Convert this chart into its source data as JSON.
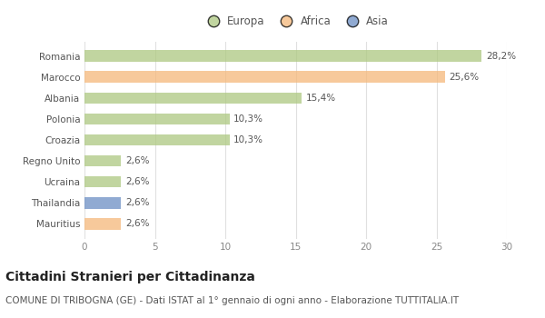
{
  "categories": [
    "Romania",
    "Marocco",
    "Albania",
    "Polonia",
    "Croazia",
    "Regno Unito",
    "Ucraina",
    "Thailandia",
    "Mauritius"
  ],
  "values": [
    28.2,
    25.6,
    15.4,
    10.3,
    10.3,
    2.6,
    2.6,
    2.6,
    2.6
  ],
  "labels": [
    "28,2%",
    "25,6%",
    "15,4%",
    "10,3%",
    "10,3%",
    "2,6%",
    "2,6%",
    "2,6%",
    "2,6%"
  ],
  "colors": [
    "#adc880",
    "#f5b87a",
    "#adc880",
    "#adc880",
    "#adc880",
    "#adc880",
    "#adc880",
    "#6b8ec4",
    "#f5b87a"
  ],
  "legend_labels": [
    "Europa",
    "Africa",
    "Asia"
  ],
  "legend_colors": [
    "#adc880",
    "#f5b87a",
    "#6b8ec4"
  ],
  "title": "Cittadini Stranieri per Cittadinanza",
  "subtitle": "COMUNE DI TRIBOGNA (GE) - Dati ISTAT al 1° gennaio di ogni anno - Elaborazione TUTTITALIA.IT",
  "xlim": [
    0,
    30
  ],
  "xticks": [
    0,
    5,
    10,
    15,
    20,
    25,
    30
  ],
  "background_color": "#ffffff",
  "grid_color": "#e0e0e0",
  "bar_alpha": 0.75,
  "title_fontsize": 10,
  "subtitle_fontsize": 7.5,
  "label_fontsize": 7.5,
  "tick_fontsize": 7.5,
  "legend_fontsize": 8.5
}
